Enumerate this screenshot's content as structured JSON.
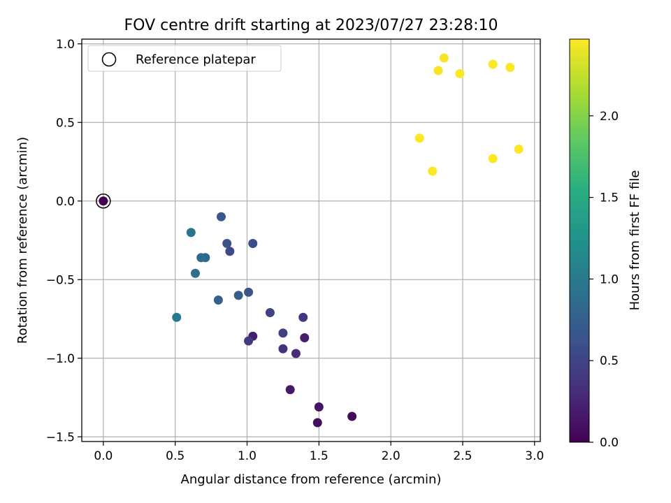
{
  "chart_data": {
    "type": "scatter",
    "title": "FOV centre drift starting at 2023/07/27 23:28:10",
    "xlabel": "Angular distance from reference (arcmin)",
    "ylabel": "Rotation from reference (arcmin)",
    "xlim": [
      -0.15,
      3.04
    ],
    "ylim": [
      -1.53,
      1.03
    ],
    "xticks": [
      0.0,
      0.5,
      1.0,
      1.5,
      2.0,
      2.5,
      3.0
    ],
    "xtick_labels": [
      "0.0",
      "0.5",
      "1.0",
      "1.5",
      "2.0",
      "2.5",
      "3.0"
    ],
    "yticks": [
      -1.5,
      -1.0,
      -0.5,
      0.0,
      0.5,
      1.0
    ],
    "ytick_labels": [
      "−1.5",
      "−1.0",
      "−0.5",
      "0.0",
      "0.5",
      "1.0"
    ],
    "grid": true,
    "legend": {
      "position": "top-left",
      "entries": [
        "Reference platepar"
      ]
    },
    "reference_point": {
      "x": 0.0,
      "y": 0.0
    },
    "colorbar": {
      "label": "Hours from first FF file",
      "range": [
        0.0,
        2.47
      ],
      "ticks": [
        0.0,
        0.5,
        1.0,
        1.5,
        2.0
      ],
      "tick_labels": [
        "0.0",
        "0.5",
        "1.0",
        "1.5",
        "2.0"
      ],
      "colormap": "viridis"
    },
    "points": [
      {
        "x": 0.0,
        "y": 0.0,
        "hours": 0.0
      },
      {
        "x": 1.73,
        "y": -1.37,
        "hours": 0.08
      },
      {
        "x": 1.49,
        "y": -1.41,
        "hours": 0.1
      },
      {
        "x": 1.5,
        "y": -1.31,
        "hours": 0.13
      },
      {
        "x": 1.3,
        "y": -1.2,
        "hours": 0.17
      },
      {
        "x": 1.4,
        "y": -0.87,
        "hours": 0.2
      },
      {
        "x": 1.04,
        "y": -0.86,
        "hours": 0.22
      },
      {
        "x": 1.34,
        "y": -0.97,
        "hours": 0.3
      },
      {
        "x": 1.25,
        "y": -0.94,
        "hours": 0.35
      },
      {
        "x": 1.39,
        "y": -0.74,
        "hours": 0.38
      },
      {
        "x": 1.01,
        "y": -0.89,
        "hours": 0.42
      },
      {
        "x": 1.25,
        "y": -0.84,
        "hours": 0.45
      },
      {
        "x": 1.16,
        "y": -0.71,
        "hours": 0.48
      },
      {
        "x": 0.88,
        "y": -0.32,
        "hours": 0.55
      },
      {
        "x": 1.04,
        "y": -0.27,
        "hours": 0.58
      },
      {
        "x": 0.86,
        "y": -0.27,
        "hours": 0.62
      },
      {
        "x": 1.01,
        "y": -0.58,
        "hours": 0.65
      },
      {
        "x": 0.82,
        "y": -0.1,
        "hours": 0.68
      },
      {
        "x": 0.94,
        "y": -0.6,
        "hours": 0.72
      },
      {
        "x": 0.8,
        "y": -0.63,
        "hours": 0.75
      },
      {
        "x": 0.71,
        "y": -0.36,
        "hours": 0.8
      },
      {
        "x": 0.68,
        "y": -0.36,
        "hours": 0.85
      },
      {
        "x": 0.64,
        "y": -0.46,
        "hours": 0.9
      },
      {
        "x": 0.61,
        "y": -0.2,
        "hours": 0.95
      },
      {
        "x": 0.51,
        "y": -0.74,
        "hours": 1.0
      },
      {
        "x": 2.33,
        "y": 0.83,
        "hours": 2.45
      },
      {
        "x": 2.37,
        "y": 0.91,
        "hours": 2.45
      },
      {
        "x": 2.48,
        "y": 0.81,
        "hours": 2.46
      },
      {
        "x": 2.71,
        "y": 0.87,
        "hours": 2.46
      },
      {
        "x": 2.83,
        "y": 0.85,
        "hours": 2.46
      },
      {
        "x": 2.2,
        "y": 0.4,
        "hours": 2.47
      },
      {
        "x": 2.29,
        "y": 0.19,
        "hours": 2.47
      },
      {
        "x": 2.71,
        "y": 0.27,
        "hours": 2.47
      },
      {
        "x": 2.89,
        "y": 0.33,
        "hours": 2.47
      }
    ]
  }
}
